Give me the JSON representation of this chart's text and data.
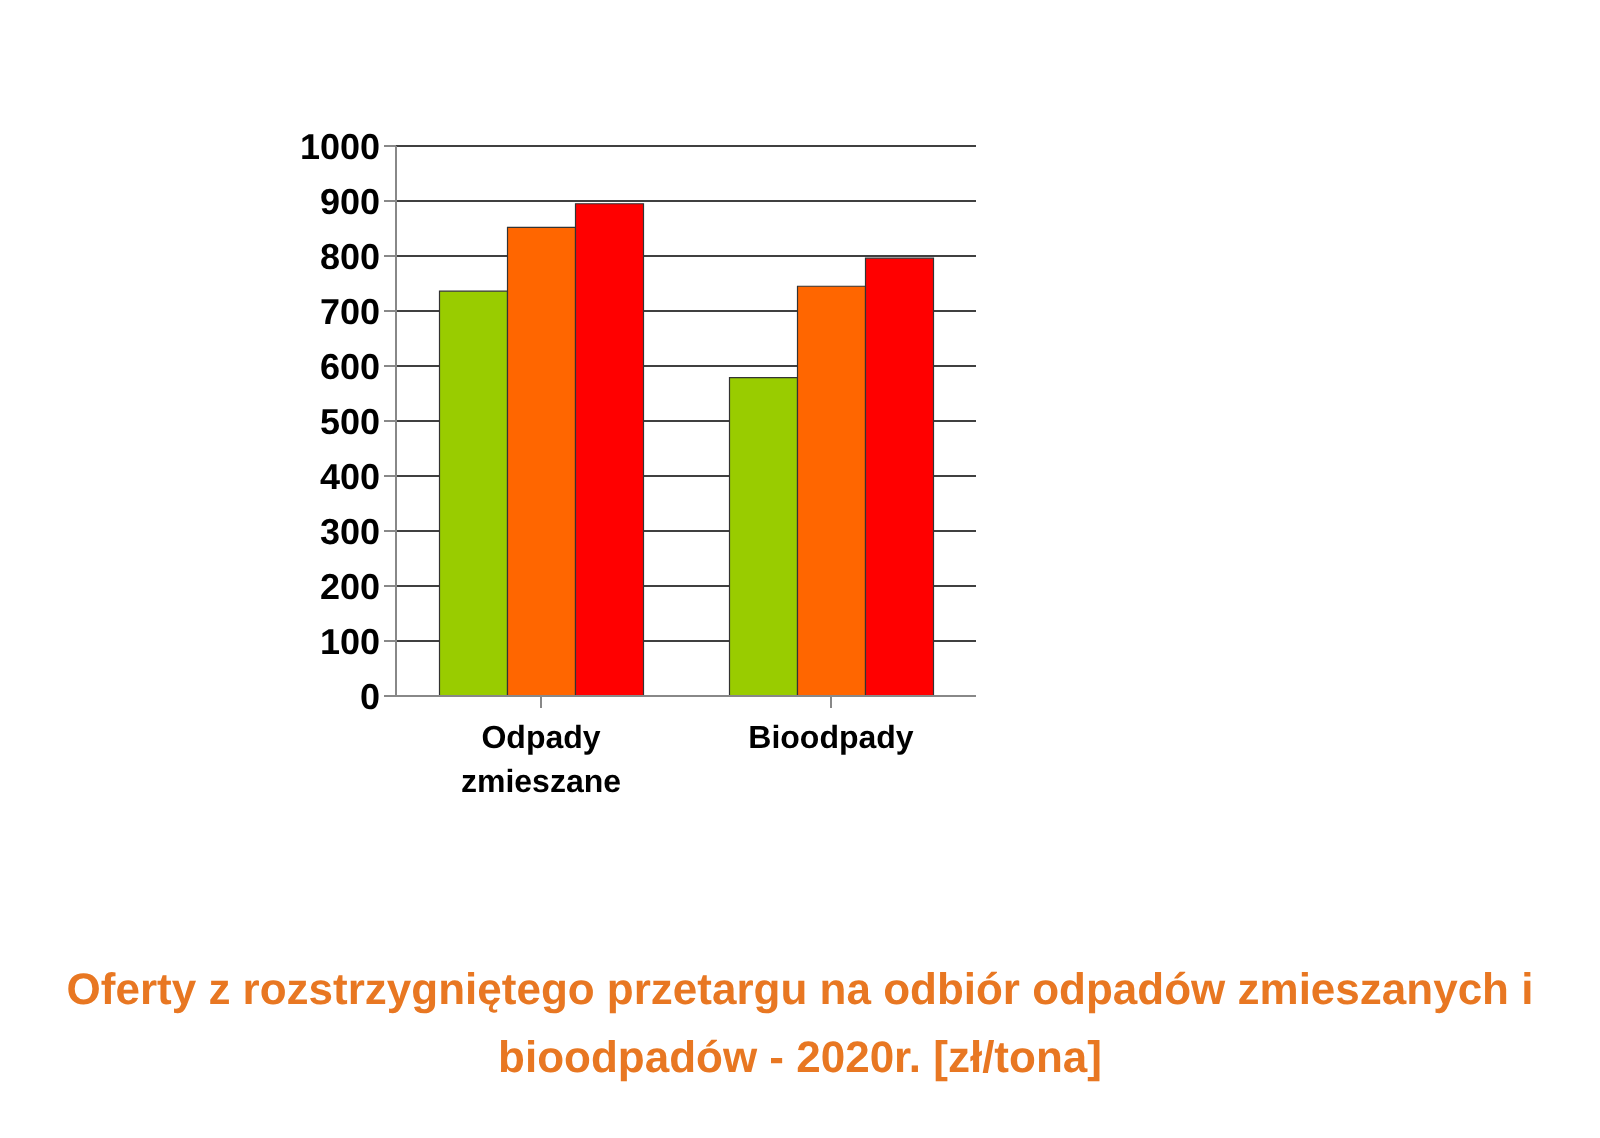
{
  "chart_data": {
    "type": "bar",
    "title": "Oferty z rozstrzygniętego przetargu na odbiór odpadów zmieszanych i bioodpadów - 2020r. [zł/tona]",
    "categories": [
      "Odpady zmieszane",
      "Bioodpady"
    ],
    "series": [
      {
        "color": "#99cc00",
        "values": [
          736,
          579
        ]
      },
      {
        "color": "#ff6600",
        "values": [
          852,
          745
        ]
      },
      {
        "color": "#ff0000",
        "values": [
          895,
          796
        ]
      }
    ],
    "ylim": [
      0,
      1000
    ],
    "yticks": [
      0,
      100,
      200,
      300,
      400,
      500,
      600,
      700,
      800,
      900,
      1000
    ],
    "grid": "y"
  }
}
